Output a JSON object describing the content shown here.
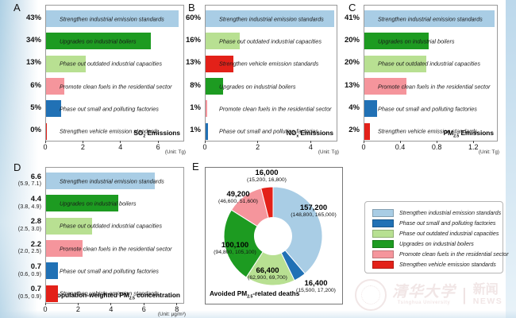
{
  "chart_data": [
    {
      "id": "A",
      "letter": "A",
      "type": "bar",
      "orientation": "horizontal",
      "title": {
        "pre": "SO",
        "sub": "2",
        "post": " Emissions"
      },
      "unit": "(Unit: Tg)",
      "xlim": [
        0,
        7.3
      ],
      "xticks": [
        "0",
        "2",
        "4",
        "6"
      ],
      "rows": [
        {
          "left": "43%",
          "label": "Strengthen industrial emission standards",
          "value": 7.05,
          "color": "#a9cde5"
        },
        {
          "left": "34%",
          "label": "Upgrades on industrial boilers",
          "value": 5.55,
          "color": "#1d9b21"
        },
        {
          "left": "13%",
          "label": "Phase out outdated industrial capacities",
          "value": 2.12,
          "color": "#b8e092"
        },
        {
          "left": "6%",
          "label": "Promote clean fuels in the residential sector",
          "value": 0.98,
          "color": "#f5959c"
        },
        {
          "left": "5%",
          "label": "Phase out small and polluting factories",
          "value": 0.82,
          "color": "#2171b5"
        },
        {
          "left": "0%",
          "label": "Strengthen vehicle emission standards",
          "value": 0.06,
          "color": "#e32119"
        }
      ]
    },
    {
      "id": "B",
      "letter": "B",
      "type": "bar",
      "orientation": "horizontal",
      "title": {
        "pre": "NO",
        "sub": "x",
        "post": " Emissions"
      },
      "unit": "(Unit: Tg)",
      "xlim": [
        0,
        4.95
      ],
      "xticks": [
        "0",
        "2",
        "4"
      ],
      "rows": [
        {
          "left": "60%",
          "label": "Strengthen industrial emission standards",
          "value": 4.85,
          "color": "#a9cde5"
        },
        {
          "left": "16%",
          "label": "Phase out outdated industrial capacities",
          "value": 1.29,
          "color": "#b8e092"
        },
        {
          "left": "13%",
          "label": "Strengthen vehicle emission standards",
          "value": 1.05,
          "color": "#e32119"
        },
        {
          "left": "8%",
          "label": "Upgrades on industrial boilers",
          "value": 0.66,
          "color": "#1d9b21"
        },
        {
          "left": "1%",
          "label": "Promote clean fuels in the residential sector",
          "value": 0.07,
          "color": "#f5959c"
        },
        {
          "left": "1%",
          "label": "Phase out small and polluting factories",
          "value": 0.1,
          "color": "#2171b5"
        }
      ]
    },
    {
      "id": "C",
      "letter": "C",
      "type": "bar",
      "orientation": "horizontal",
      "title": {
        "pre": "PM",
        "sub": "2.5",
        "post": " Emissions"
      },
      "unit": "(Unit: Tg)",
      "xlim": [
        0,
        1.45
      ],
      "xticks": [
        "0",
        "0.4",
        "0.8",
        "1.2"
      ],
      "rows": [
        {
          "left": "41%",
          "label": "Strengthen industrial emission standards",
          "value": 1.42,
          "color": "#a9cde5"
        },
        {
          "left": "20%",
          "label": "Upgrades on industrial boilers",
          "value": 0.7,
          "color": "#1d9b21"
        },
        {
          "left": "20%",
          "label": "Phase out outdated industrial capacities",
          "value": 0.68,
          "color": "#b8e092"
        },
        {
          "left": "13%",
          "label": "Promote clean fuels in the residential sector",
          "value": 0.46,
          "color": "#f5959c"
        },
        {
          "left": "4%",
          "label": "Phase out small and polluting factories",
          "value": 0.14,
          "color": "#2171b5"
        },
        {
          "left": "2%",
          "label": "Strengthen vehicle emission standards",
          "value": 0.06,
          "color": "#e32119"
        }
      ]
    },
    {
      "id": "D",
      "letter": "D",
      "type": "bar",
      "orientation": "horizontal",
      "title": {
        "pre": "Population-weighted PM",
        "sub": "2.5",
        "post": " concentration"
      },
      "unit": "(Unit: μg/m³)",
      "xlim": [
        0,
        8.35
      ],
      "xticks": [
        "0",
        "2",
        "4",
        "6",
        "8"
      ],
      "rows": [
        {
          "left": "6.6",
          "ci": "(5.9, 7.1)",
          "label": "Strengthen industrial emission standards",
          "value": 6.6,
          "color": "#a9cde5"
        },
        {
          "left": "4.4",
          "ci": "(3.8, 4.9)",
          "label": "Upgrades on industrial boilers",
          "value": 4.4,
          "color": "#1d9b21"
        },
        {
          "left": "2.8",
          "ci": "(2.5, 3.0)",
          "label": "Phase out outdated industrial capacities",
          "value": 2.8,
          "color": "#b8e092"
        },
        {
          "left": "2.2",
          "ci": "(2.0, 2.5)",
          "label": "Promote clean fuels in the residential sector",
          "value": 2.2,
          "color": "#f5959c"
        },
        {
          "left": "0.7",
          "ci": "(0.6, 0.9)",
          "label": "Phase out small and polluting factories",
          "value": 0.7,
          "color": "#2171b5"
        },
        {
          "left": "0.7",
          "ci": "(0.5, 0.9)",
          "label": "Strengthen vehicle emission standards",
          "value": 0.7,
          "color": "#e32119"
        }
      ]
    },
    {
      "id": "E",
      "letter": "E",
      "type": "donut",
      "title": {
        "pre": "Avoided PM",
        "sub": "2.5",
        "post": "-related deaths"
      },
      "slices": [
        {
          "label": "Strengthen industrial emission standards",
          "value": 157200,
          "display": "157,200",
          "ci": "(148,800, 165,000)",
          "color": "#a9cde5"
        },
        {
          "label": "Phase out small and polluting factories",
          "value": 16400,
          "display": "16,400",
          "ci": "(15,500, 17,200)",
          "color": "#2171b5"
        },
        {
          "label": "Phase out outdated industrial capacities",
          "value": 66400,
          "display": "66,400",
          "ci": "(62,900, 69,700)",
          "color": "#b8e092"
        },
        {
          "label": "Upgrades on industrial boilers",
          "value": 100100,
          "display": "100,100",
          "ci": "(94,800, 105,100)",
          "color": "#1d9b21"
        },
        {
          "label": "Promote clean fuels in the residential sector",
          "value": 49200,
          "display": "49,200",
          "ci": "(46,600, 51,600)",
          "color": "#f5959c"
        },
        {
          "label": "Strengthen vehicle emission standards",
          "value": 16000,
          "display": "16,000",
          "ci": "(15,200, 16,800)",
          "color": "#e32119"
        }
      ]
    }
  ],
  "legend": {
    "items": [
      {
        "color": "#a9cde5",
        "label": "Strengthen industrial emission standards"
      },
      {
        "color": "#2171b5",
        "label": "Phase out small and polluting factories"
      },
      {
        "color": "#b8e092",
        "label": "Phase out outdated industrial capacities"
      },
      {
        "color": "#1d9b21",
        "label": "Upgrades on industrial boilers"
      },
      {
        "color": "#f5959c",
        "label": "Promote clean fuels in the residential sector"
      },
      {
        "color": "#e32119",
        "label": "Strengthen vehicle emission standards"
      }
    ]
  },
  "watermark": {
    "cn": "清华大学",
    "en": "Tsinghua University",
    "divider": "|",
    "news_cn": "新闻",
    "news_en": "NEWS"
  }
}
